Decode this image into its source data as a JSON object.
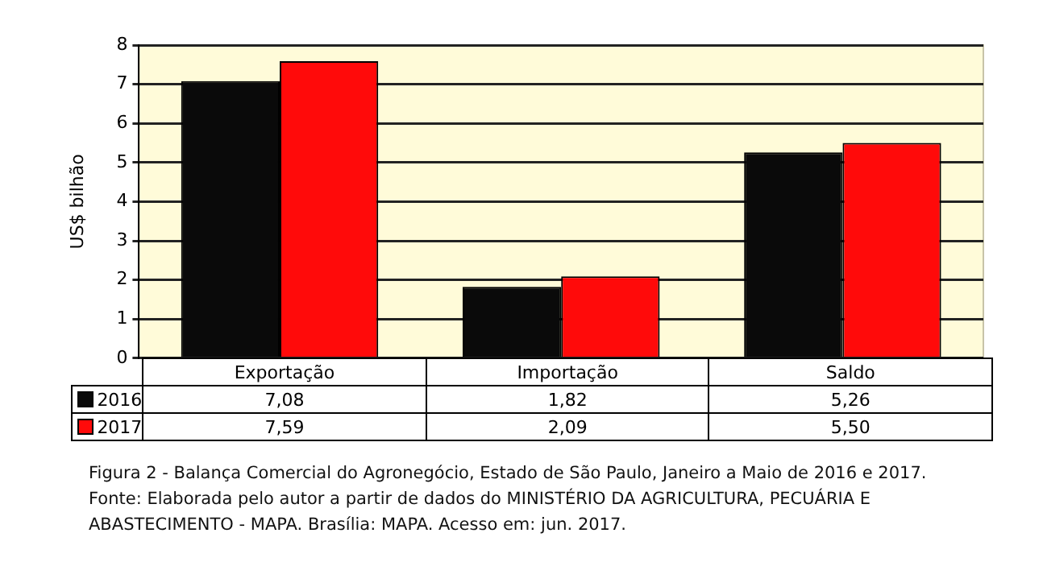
{
  "chart_data": {
    "type": "bar",
    "ylabel": "US$ bilhão",
    "categories": [
      "Exportação",
      "Importação",
      "Saldo"
    ],
    "series": [
      {
        "name": "2016",
        "color": "#0a0a0a",
        "values": [
          7.08,
          1.82,
          5.26
        ],
        "value_labels": [
          "7,08",
          "1,82",
          "5,26"
        ]
      },
      {
        "name": "2017",
        "color": "#ff0a0a",
        "values": [
          7.59,
          2.09,
          5.5
        ],
        "value_labels": [
          "7,59",
          "2,09",
          "5,50"
        ]
      }
    ],
    "ylim": [
      0,
      8
    ],
    "yticks": [
      0,
      1,
      2,
      3,
      4,
      5,
      6,
      7,
      8
    ],
    "grid": "y",
    "legend": "bottom",
    "annotations": [
      "Figura 2 - Balança Comercial do Agronegócio, Estado de São Paulo, Janeiro a Maio de 2016 e 2017.",
      "Fonte: Elaborada pelo autor a partir de dados do MINISTÉRIO DA AGRICULTURA, PECUÁRIA E ABASTECIMENTO - MAPA. Brasília: MAPA. Acesso em: jun. 2017."
    ]
  }
}
